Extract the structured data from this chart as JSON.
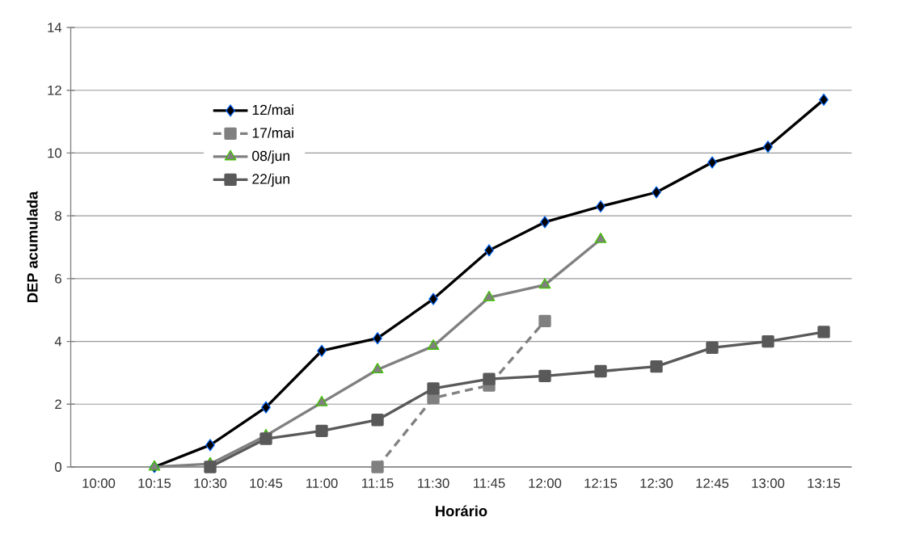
{
  "chart_data": {
    "type": "line",
    "xlabel": "Horário",
    "ylabel": "DEP acumulada",
    "categories": [
      "10:00",
      "10:15",
      "10:30",
      "10:45",
      "11:00",
      "11:15",
      "11:30",
      "11:45",
      "12:00",
      "12:15",
      "12:30",
      "12:45",
      "13:00",
      "13:15"
    ],
    "ylim": [
      0,
      14
    ],
    "yticks": [
      0,
      2,
      4,
      6,
      8,
      10,
      12,
      14
    ],
    "grid": "y",
    "legend": "top left",
    "series": [
      {
        "name": "12/mai",
        "color": "#000000",
        "marker": "diamond",
        "line_style": "solid",
        "values": [
          null,
          0,
          0.7,
          1.9,
          3.7,
          4.1,
          5.35,
          6.9,
          7.8,
          8.3,
          8.75,
          9.7,
          10.2,
          11.7
        ]
      },
      {
        "name": "17/mai",
        "color": "#808080",
        "marker": "square",
        "line_style": "dashed",
        "values": [
          null,
          null,
          null,
          null,
          null,
          0,
          2.2,
          2.6,
          4.65,
          null,
          null,
          null,
          null,
          null
        ]
      },
      {
        "name": "08/jun",
        "color": "#808080",
        "marker": "triangle",
        "line_style": "solid",
        "values": [
          null,
          0,
          0.1,
          1.0,
          2.05,
          3.1,
          3.85,
          5.4,
          5.8,
          7.25,
          null,
          null,
          null,
          null
        ]
      },
      {
        "name": "22/jun",
        "color": "#595959",
        "marker": "square",
        "line_style": "solid",
        "values": [
          null,
          null,
          0,
          0.9,
          1.15,
          1.5,
          2.5,
          2.8,
          2.9,
          3.05,
          3.2,
          3.8,
          4.0,
          4.3
        ]
      }
    ]
  }
}
